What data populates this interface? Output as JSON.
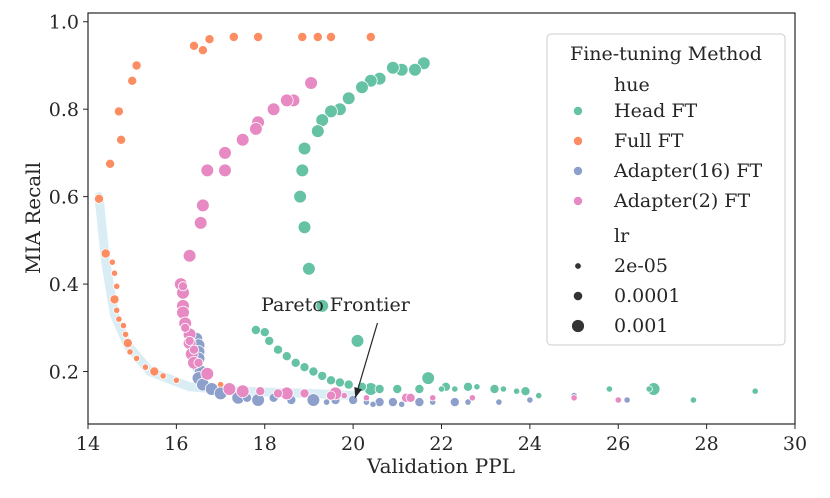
{
  "chart_data": {
    "type": "scatter",
    "title": "",
    "xlabel": "Validation PPL",
    "ylabel": "MIA Recall",
    "xlim": [
      14,
      30
    ],
    "ylim": [
      0.08,
      1.02
    ],
    "xticks": [
      "14",
      "16",
      "18",
      "20",
      "22",
      "24",
      "26",
      "28",
      "30"
    ],
    "yticks": [
      "0.2",
      "0.4",
      "0.6",
      "0.8",
      "1.0"
    ],
    "grid": false,
    "legend": {
      "title": "Fine-tuning Method",
      "position": "top-right",
      "hue_header": "hue",
      "size_header": "lr",
      "hue_entries": [
        {
          "label": "Head FT",
          "color": "#66c2a5"
        },
        {
          "label": "Full FT",
          "color": "#fc8d62"
        },
        {
          "label": "Adapter(16) FT",
          "color": "#8da0cb"
        },
        {
          "label": "Adapter(2) FT",
          "color": "#e78ac3"
        }
      ],
      "size_entries": [
        {
          "label": "2e-05",
          "size": "small"
        },
        {
          "label": "0.0001",
          "size": "medium"
        },
        {
          "label": "0.001",
          "size": "large"
        }
      ]
    },
    "annotation": {
      "text": "Pareto Frontier",
      "text_at": [
        19.6,
        0.32
      ],
      "arrow_to": [
        20.05,
        0.14
      ]
    },
    "pareto_frontier": [
      [
        14.25,
        0.6
      ],
      [
        14.4,
        0.45
      ],
      [
        14.6,
        0.33
      ],
      [
        14.9,
        0.26
      ],
      [
        15.4,
        0.2
      ],
      [
        16.3,
        0.165
      ],
      [
        17.5,
        0.155
      ],
      [
        19.0,
        0.15
      ],
      [
        20.0,
        0.145
      ]
    ],
    "series": [
      {
        "name": "Head FT",
        "color": "#66c2a5",
        "points": [
          [
            21.6,
            0.905,
            "large"
          ],
          [
            21.4,
            0.89,
            "large"
          ],
          [
            21.1,
            0.89,
            "large"
          ],
          [
            20.9,
            0.895,
            "large"
          ],
          [
            20.6,
            0.87,
            "large"
          ],
          [
            20.4,
            0.865,
            "large"
          ],
          [
            20.2,
            0.85,
            "large"
          ],
          [
            19.9,
            0.825,
            "large"
          ],
          [
            19.7,
            0.8,
            "large"
          ],
          [
            19.5,
            0.795,
            "large"
          ],
          [
            19.3,
            0.775,
            "large"
          ],
          [
            19.2,
            0.75,
            "large"
          ],
          [
            18.9,
            0.71,
            "large"
          ],
          [
            18.85,
            0.66,
            "large"
          ],
          [
            18.8,
            0.6,
            "large"
          ],
          [
            18.9,
            0.53,
            "large"
          ],
          [
            19.0,
            0.435,
            "large"
          ],
          [
            19.3,
            0.35,
            "large"
          ],
          [
            20.1,
            0.27,
            "large"
          ],
          [
            21.7,
            0.185,
            "large"
          ],
          [
            20.4,
            0.16,
            "large"
          ],
          [
            26.8,
            0.16,
            "large"
          ],
          [
            17.8,
            0.295,
            "medium"
          ],
          [
            18.0,
            0.29,
            "medium"
          ],
          [
            18.1,
            0.27,
            "medium"
          ],
          [
            18.3,
            0.25,
            "medium"
          ],
          [
            18.5,
            0.235,
            "medium"
          ],
          [
            18.7,
            0.22,
            "medium"
          ],
          [
            18.9,
            0.21,
            "medium"
          ],
          [
            19.1,
            0.2,
            "medium"
          ],
          [
            19.3,
            0.19,
            "medium"
          ],
          [
            19.5,
            0.18,
            "medium"
          ],
          [
            19.7,
            0.175,
            "medium"
          ],
          [
            19.9,
            0.17,
            "medium"
          ],
          [
            20.2,
            0.165,
            "medium"
          ],
          [
            20.6,
            0.16,
            "medium"
          ],
          [
            21.0,
            0.16,
            "medium"
          ],
          [
            21.5,
            0.16,
            "medium"
          ],
          [
            22.1,
            0.165,
            "medium"
          ],
          [
            22.6,
            0.165,
            "medium"
          ],
          [
            23.2,
            0.16,
            "medium"
          ],
          [
            23.9,
            0.155,
            "medium"
          ],
          [
            22.3,
            0.16,
            "small"
          ],
          [
            22.8,
            0.165,
            "small"
          ],
          [
            23.4,
            0.16,
            "small"
          ],
          [
            23.7,
            0.155,
            "small"
          ],
          [
            24.2,
            0.145,
            "small"
          ],
          [
            25.0,
            0.145,
            "small"
          ],
          [
            25.8,
            0.16,
            "small"
          ],
          [
            26.7,
            0.16,
            "small"
          ],
          [
            27.7,
            0.135,
            "small"
          ],
          [
            29.1,
            0.155,
            "small"
          ],
          [
            22.0,
            0.16,
            "small"
          ]
        ]
      },
      {
        "name": "Full FT",
        "color": "#fc8d62",
        "points": [
          [
            14.25,
            0.595,
            "medium"
          ],
          [
            14.4,
            0.47,
            "medium"
          ],
          [
            14.5,
            0.675,
            "medium"
          ],
          [
            14.7,
            0.795,
            "medium"
          ],
          [
            14.75,
            0.73,
            "medium"
          ],
          [
            15.0,
            0.865,
            "medium"
          ],
          [
            15.1,
            0.9,
            "medium"
          ],
          [
            16.4,
            0.945,
            "medium"
          ],
          [
            16.6,
            0.935,
            "medium"
          ],
          [
            16.75,
            0.96,
            "medium"
          ],
          [
            17.3,
            0.965,
            "medium"
          ],
          [
            17.85,
            0.965,
            "medium"
          ],
          [
            18.85,
            0.965,
            "medium"
          ],
          [
            19.2,
            0.965,
            "medium"
          ],
          [
            19.5,
            0.965,
            "medium"
          ],
          [
            20.4,
            0.965,
            "medium"
          ],
          [
            14.6,
            0.365,
            "medium"
          ],
          [
            14.9,
            0.265,
            "medium"
          ],
          [
            15.5,
            0.2,
            "medium"
          ],
          [
            14.55,
            0.45,
            "small"
          ],
          [
            14.6,
            0.425,
            "small"
          ],
          [
            14.65,
            0.395,
            "small"
          ],
          [
            14.65,
            0.34,
            "small"
          ],
          [
            14.7,
            0.32,
            "small"
          ],
          [
            14.8,
            0.305,
            "small"
          ],
          [
            14.85,
            0.285,
            "small"
          ],
          [
            14.95,
            0.245,
            "small"
          ],
          [
            15.1,
            0.23,
            "small"
          ],
          [
            15.3,
            0.21,
            "small"
          ],
          [
            15.7,
            0.19,
            "small"
          ],
          [
            16.0,
            0.18,
            "small"
          ],
          [
            16.5,
            0.175,
            "small"
          ],
          [
            17.0,
            0.17,
            "small"
          ]
        ]
      },
      {
        "name": "Adapter(16) FT",
        "color": "#8da0cb",
        "points": [
          [
            16.45,
            0.275,
            "large"
          ],
          [
            16.5,
            0.26,
            "large"
          ],
          [
            16.5,
            0.245,
            "large"
          ],
          [
            16.5,
            0.23,
            "large"
          ],
          [
            16.45,
            0.215,
            "large"
          ],
          [
            16.55,
            0.2,
            "large"
          ],
          [
            16.5,
            0.185,
            "large"
          ],
          [
            16.6,
            0.17,
            "large"
          ],
          [
            16.8,
            0.16,
            "large"
          ],
          [
            17.0,
            0.15,
            "large"
          ],
          [
            17.4,
            0.14,
            "large"
          ],
          [
            17.85,
            0.135,
            "large"
          ],
          [
            19.1,
            0.135,
            "large"
          ],
          [
            17.6,
            0.14,
            "medium"
          ],
          [
            18.2,
            0.14,
            "medium"
          ],
          [
            18.6,
            0.135,
            "medium"
          ],
          [
            19.6,
            0.135,
            "medium"
          ],
          [
            20.0,
            0.135,
            "medium"
          ],
          [
            20.6,
            0.13,
            "medium"
          ],
          [
            20.9,
            0.13,
            "medium"
          ],
          [
            21.5,
            0.13,
            "medium"
          ],
          [
            22.3,
            0.13,
            "medium"
          ],
          [
            20.3,
            0.13,
            "small"
          ],
          [
            21.1,
            0.125,
            "small"
          ],
          [
            21.8,
            0.13,
            "small"
          ],
          [
            22.6,
            0.13,
            "small"
          ],
          [
            23.3,
            0.13,
            "small"
          ],
          [
            24.0,
            0.135,
            "small"
          ],
          [
            25.0,
            0.145,
            "small"
          ],
          [
            26.2,
            0.135,
            "small"
          ],
          [
            19.4,
            0.13,
            "small"
          ],
          [
            20.45,
            0.125,
            "small"
          ]
        ]
      },
      {
        "name": "Adapter(2) FT",
        "color": "#e78ac3",
        "points": [
          [
            19.05,
            0.86,
            "large"
          ],
          [
            18.65,
            0.82,
            "large"
          ],
          [
            18.5,
            0.82,
            "large"
          ],
          [
            18.2,
            0.8,
            "large"
          ],
          [
            17.85,
            0.77,
            "large"
          ],
          [
            17.8,
            0.755,
            "large"
          ],
          [
            17.5,
            0.73,
            "large"
          ],
          [
            17.1,
            0.7,
            "large"
          ],
          [
            17.1,
            0.66,
            "large"
          ],
          [
            16.7,
            0.66,
            "large"
          ],
          [
            16.6,
            0.58,
            "large"
          ],
          [
            16.55,
            0.54,
            "large"
          ],
          [
            16.3,
            0.465,
            "large"
          ],
          [
            16.1,
            0.4,
            "large"
          ],
          [
            16.15,
            0.38,
            "large"
          ],
          [
            16.15,
            0.35,
            "large"
          ],
          [
            16.15,
            0.335,
            "large"
          ],
          [
            16.2,
            0.31,
            "large"
          ],
          [
            16.3,
            0.285,
            "large"
          ],
          [
            16.3,
            0.265,
            "large"
          ],
          [
            16.35,
            0.24,
            "large"
          ],
          [
            16.4,
            0.22,
            "large"
          ],
          [
            16.7,
            0.195,
            "large"
          ],
          [
            17.2,
            0.16,
            "large"
          ],
          [
            17.5,
            0.155,
            "large"
          ],
          [
            18.5,
            0.15,
            "large"
          ],
          [
            19.6,
            0.15,
            "large"
          ],
          [
            16.15,
            0.395,
            "medium"
          ],
          [
            16.2,
            0.3,
            "medium"
          ],
          [
            16.3,
            0.27,
            "medium"
          ],
          [
            16.4,
            0.25,
            "medium"
          ],
          [
            16.5,
            0.22,
            "medium"
          ],
          [
            17.9,
            0.155,
            "medium"
          ],
          [
            18.3,
            0.15,
            "medium"
          ],
          [
            18.9,
            0.15,
            "medium"
          ],
          [
            19.5,
            0.145,
            "medium"
          ],
          [
            21.2,
            0.14,
            "medium"
          ],
          [
            21.3,
            0.14,
            "medium"
          ],
          [
            19.8,
            0.145,
            "small"
          ],
          [
            20.3,
            0.14,
            "small"
          ],
          [
            21.8,
            0.14,
            "small"
          ],
          [
            22.7,
            0.14,
            "small"
          ],
          [
            25.0,
            0.14,
            "small"
          ],
          [
            26.0,
            0.135,
            "small"
          ]
        ]
      }
    ]
  }
}
